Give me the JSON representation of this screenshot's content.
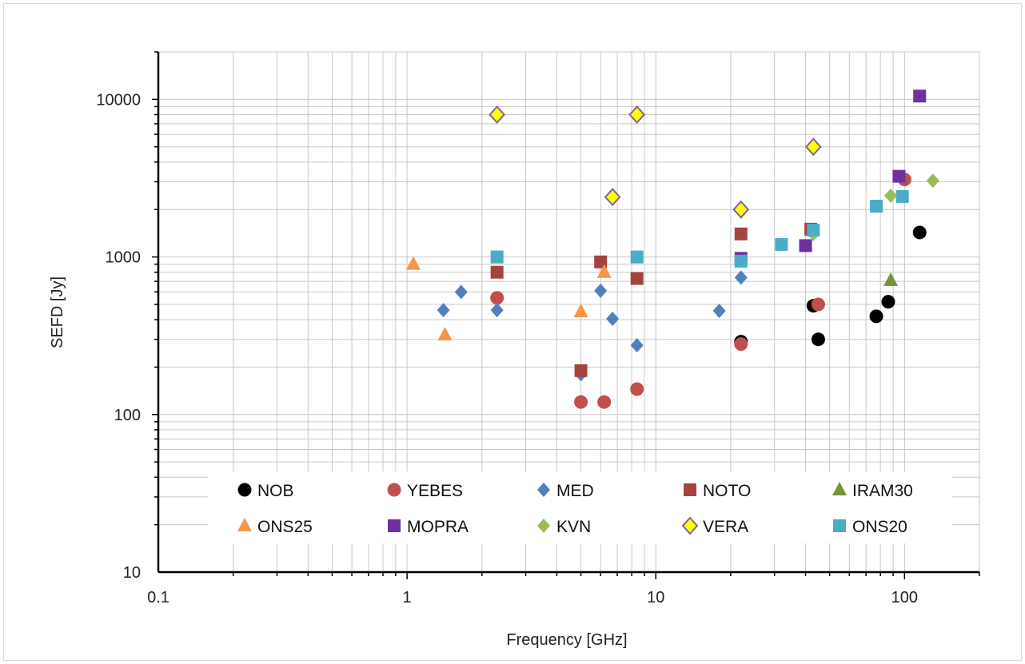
{
  "chart_data": {
    "type": "scatter",
    "title": "",
    "xlabel": "Frequency [GHz]",
    "ylabel": "SEFD [Jy]",
    "x_scale": "log",
    "y_scale": "log",
    "xlim": [
      0.1,
      200
    ],
    "ylim": [
      10,
      20000
    ],
    "x_ticks": [
      0.1,
      1,
      10,
      100
    ],
    "x_tick_labels": [
      "0.1",
      "1",
      "10",
      "100"
    ],
    "y_ticks": [
      10,
      100,
      1000,
      10000
    ],
    "y_tick_labels": [
      "10",
      "100",
      "1000",
      "10000"
    ],
    "grid": true,
    "legend": "bottom-inside",
    "series": [
      {
        "name": "NOB",
        "marker": "circle",
        "color": "#000000",
        "points": [
          [
            22,
            290
          ],
          [
            43,
            490
          ],
          [
            45,
            300
          ],
          [
            77,
            420
          ],
          [
            86,
            520
          ],
          [
            115,
            1430
          ]
        ]
      },
      {
        "name": "YEBES",
        "marker": "circle",
        "color": "#c0504d",
        "points": [
          [
            2.3,
            550
          ],
          [
            5,
            120
          ],
          [
            6.2,
            120
          ],
          [
            8.4,
            145
          ],
          [
            22,
            280
          ],
          [
            45,
            500
          ],
          [
            100,
            3100
          ]
        ]
      },
      {
        "name": "MED",
        "marker": "diamond",
        "color": "#4f81bd",
        "points": [
          [
            1.4,
            460
          ],
          [
            1.65,
            600
          ],
          [
            2.3,
            460
          ],
          [
            5,
            180
          ],
          [
            6,
            610
          ],
          [
            6.7,
            405
          ],
          [
            8.4,
            275
          ],
          [
            18,
            455
          ],
          [
            22,
            740
          ]
        ]
      },
      {
        "name": "NOTO",
        "marker": "square",
        "color": "#a5443f",
        "points": [
          [
            5,
            190
          ],
          [
            6,
            930
          ],
          [
            2.3,
            800
          ],
          [
            8.4,
            730
          ],
          [
            22,
            1400
          ],
          [
            42,
            1500
          ]
        ]
      },
      {
        "name": "IRAM30",
        "marker": "triangle",
        "color": "#77933c",
        "points": [
          [
            88,
            710
          ]
        ]
      },
      {
        "name": "ONS25",
        "marker": "triangle",
        "color": "#f79646",
        "points": [
          [
            1.06,
            900
          ],
          [
            1.42,
            320
          ],
          [
            5,
            450
          ],
          [
            6.2,
            800
          ]
        ]
      },
      {
        "name": "MOPRA",
        "marker": "square",
        "color": "#7030a0",
        "points": [
          [
            22,
            980
          ],
          [
            40,
            1180
          ],
          [
            95,
            3250
          ],
          [
            115,
            10500
          ]
        ]
      },
      {
        "name": "KVN",
        "marker": "diamond",
        "color": "#9bbb59",
        "points": [
          [
            43,
            1400
          ],
          [
            88,
            2450
          ],
          [
            130,
            3050
          ]
        ]
      },
      {
        "name": "VERA",
        "marker": "diamond-outline",
        "color": "#ffff00",
        "stroke": "#8064a2",
        "points": [
          [
            2.3,
            8000
          ],
          [
            8.4,
            8000
          ],
          [
            6.7,
            2400
          ],
          [
            22,
            2000
          ],
          [
            43,
            5000
          ]
        ]
      },
      {
        "name": "ONS20",
        "marker": "square",
        "color": "#4bacc6",
        "points": [
          [
            2.3,
            1000
          ],
          [
            8.4,
            1000
          ],
          [
            22,
            940
          ],
          [
            32,
            1200
          ],
          [
            43,
            1480
          ],
          [
            77,
            2100
          ],
          [
            98,
            2420
          ]
        ]
      }
    ]
  }
}
